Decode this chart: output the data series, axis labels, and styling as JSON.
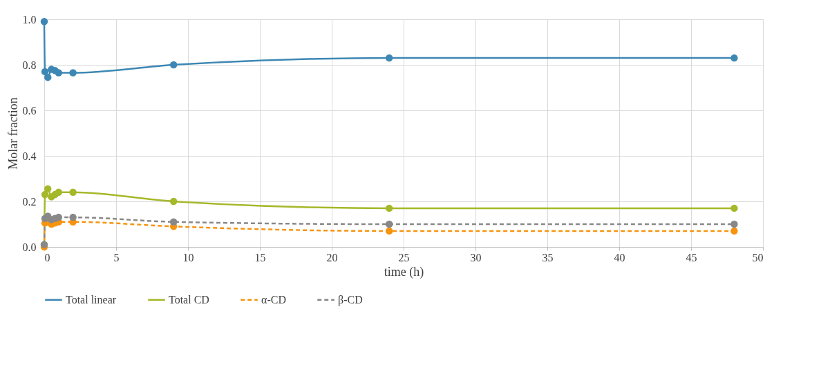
{
  "chart_data": {
    "type": "line",
    "xlabel": "time (h)",
    "ylabel": "Molar fraction",
    "x": [
      0,
      0.05,
      0.25,
      0.5,
      0.75,
      1,
      2,
      9,
      24,
      48
    ],
    "series": [
      {
        "name": "Total linear",
        "color": "#3d87b4",
        "line_style": "solid",
        "values": [
          0.99,
          0.77,
          0.745,
          0.78,
          0.775,
          0.765,
          0.765,
          0.8,
          0.83,
          0.83
        ]
      },
      {
        "name": "Total CD",
        "color": "#a5b829",
        "line_style": "solid",
        "values": [
          0.01,
          0.23,
          0.255,
          0.22,
          0.23,
          0.24,
          0.24,
          0.2,
          0.17,
          0.17
        ]
      },
      {
        "name": "α-CD",
        "color": "#f7930f",
        "line_style": "dashed",
        "values": [
          0.0,
          0.105,
          0.11,
          0.1,
          0.105,
          0.11,
          0.11,
          0.09,
          0.07,
          0.07
        ]
      },
      {
        "name": "β-CD",
        "color": "#888888",
        "line_style": "dashed",
        "values": [
          0.01,
          0.125,
          0.135,
          0.12,
          0.125,
          0.13,
          0.13,
          0.11,
          0.1,
          0.1
        ]
      }
    ],
    "xlim": [
      0,
      50
    ],
    "xticks": [
      0,
      5,
      10,
      15,
      20,
      25,
      30,
      35,
      40,
      45,
      50
    ],
    "ylim": [
      0,
      1
    ],
    "yticks": [
      {
        "value": 0,
        "label": "0.0"
      },
      {
        "value": 0.2,
        "label": "0.2"
      },
      {
        "value": 0.4,
        "label": "0.4"
      },
      {
        "value": 0.6,
        "label": "0.6"
      },
      {
        "value": 0.8,
        "label": "0.8"
      },
      {
        "value": 1,
        "label": "1.0"
      }
    ],
    "grid": true,
    "legend": "bottom",
    "marker": "circle"
  }
}
